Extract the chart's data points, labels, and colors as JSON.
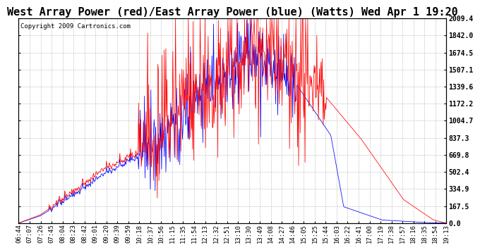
{
  "title": "West Array Power (red)/East Array Power (blue) (Watts) Wed Apr 1 19:20",
  "copyright": "Copyright 2009 Cartronics.com",
  "yticks": [
    0.0,
    167.5,
    334.9,
    502.4,
    669.8,
    837.3,
    1004.7,
    1172.2,
    1339.6,
    1507.1,
    1674.5,
    1842.0,
    2009.4
  ],
  "ymax": 2009.4,
  "ymin": 0.0,
  "xtick_labels": [
    "06:44",
    "07:07",
    "07:26",
    "07:45",
    "08:04",
    "08:23",
    "08:42",
    "09:01",
    "09:20",
    "09:39",
    "09:59",
    "10:18",
    "10:37",
    "10:56",
    "11:15",
    "11:35",
    "11:54",
    "12:13",
    "12:32",
    "12:51",
    "13:10",
    "13:30",
    "13:49",
    "14:08",
    "14:27",
    "14:46",
    "15:05",
    "15:25",
    "15:44",
    "16:03",
    "16:22",
    "16:41",
    "17:00",
    "17:19",
    "17:38",
    "17:57",
    "18:16",
    "18:35",
    "18:54",
    "19:13"
  ],
  "background_color": "#ffffff",
  "plot_bg_color": "#ffffff",
  "grid_color": "#b0b0b0",
  "title_fontsize": 11,
  "copyright_fontsize": 6.5,
  "tick_fontsize": 6.5,
  "red_color": "#ff0000",
  "blue_color": "#0000ff",
  "n_points": 800
}
